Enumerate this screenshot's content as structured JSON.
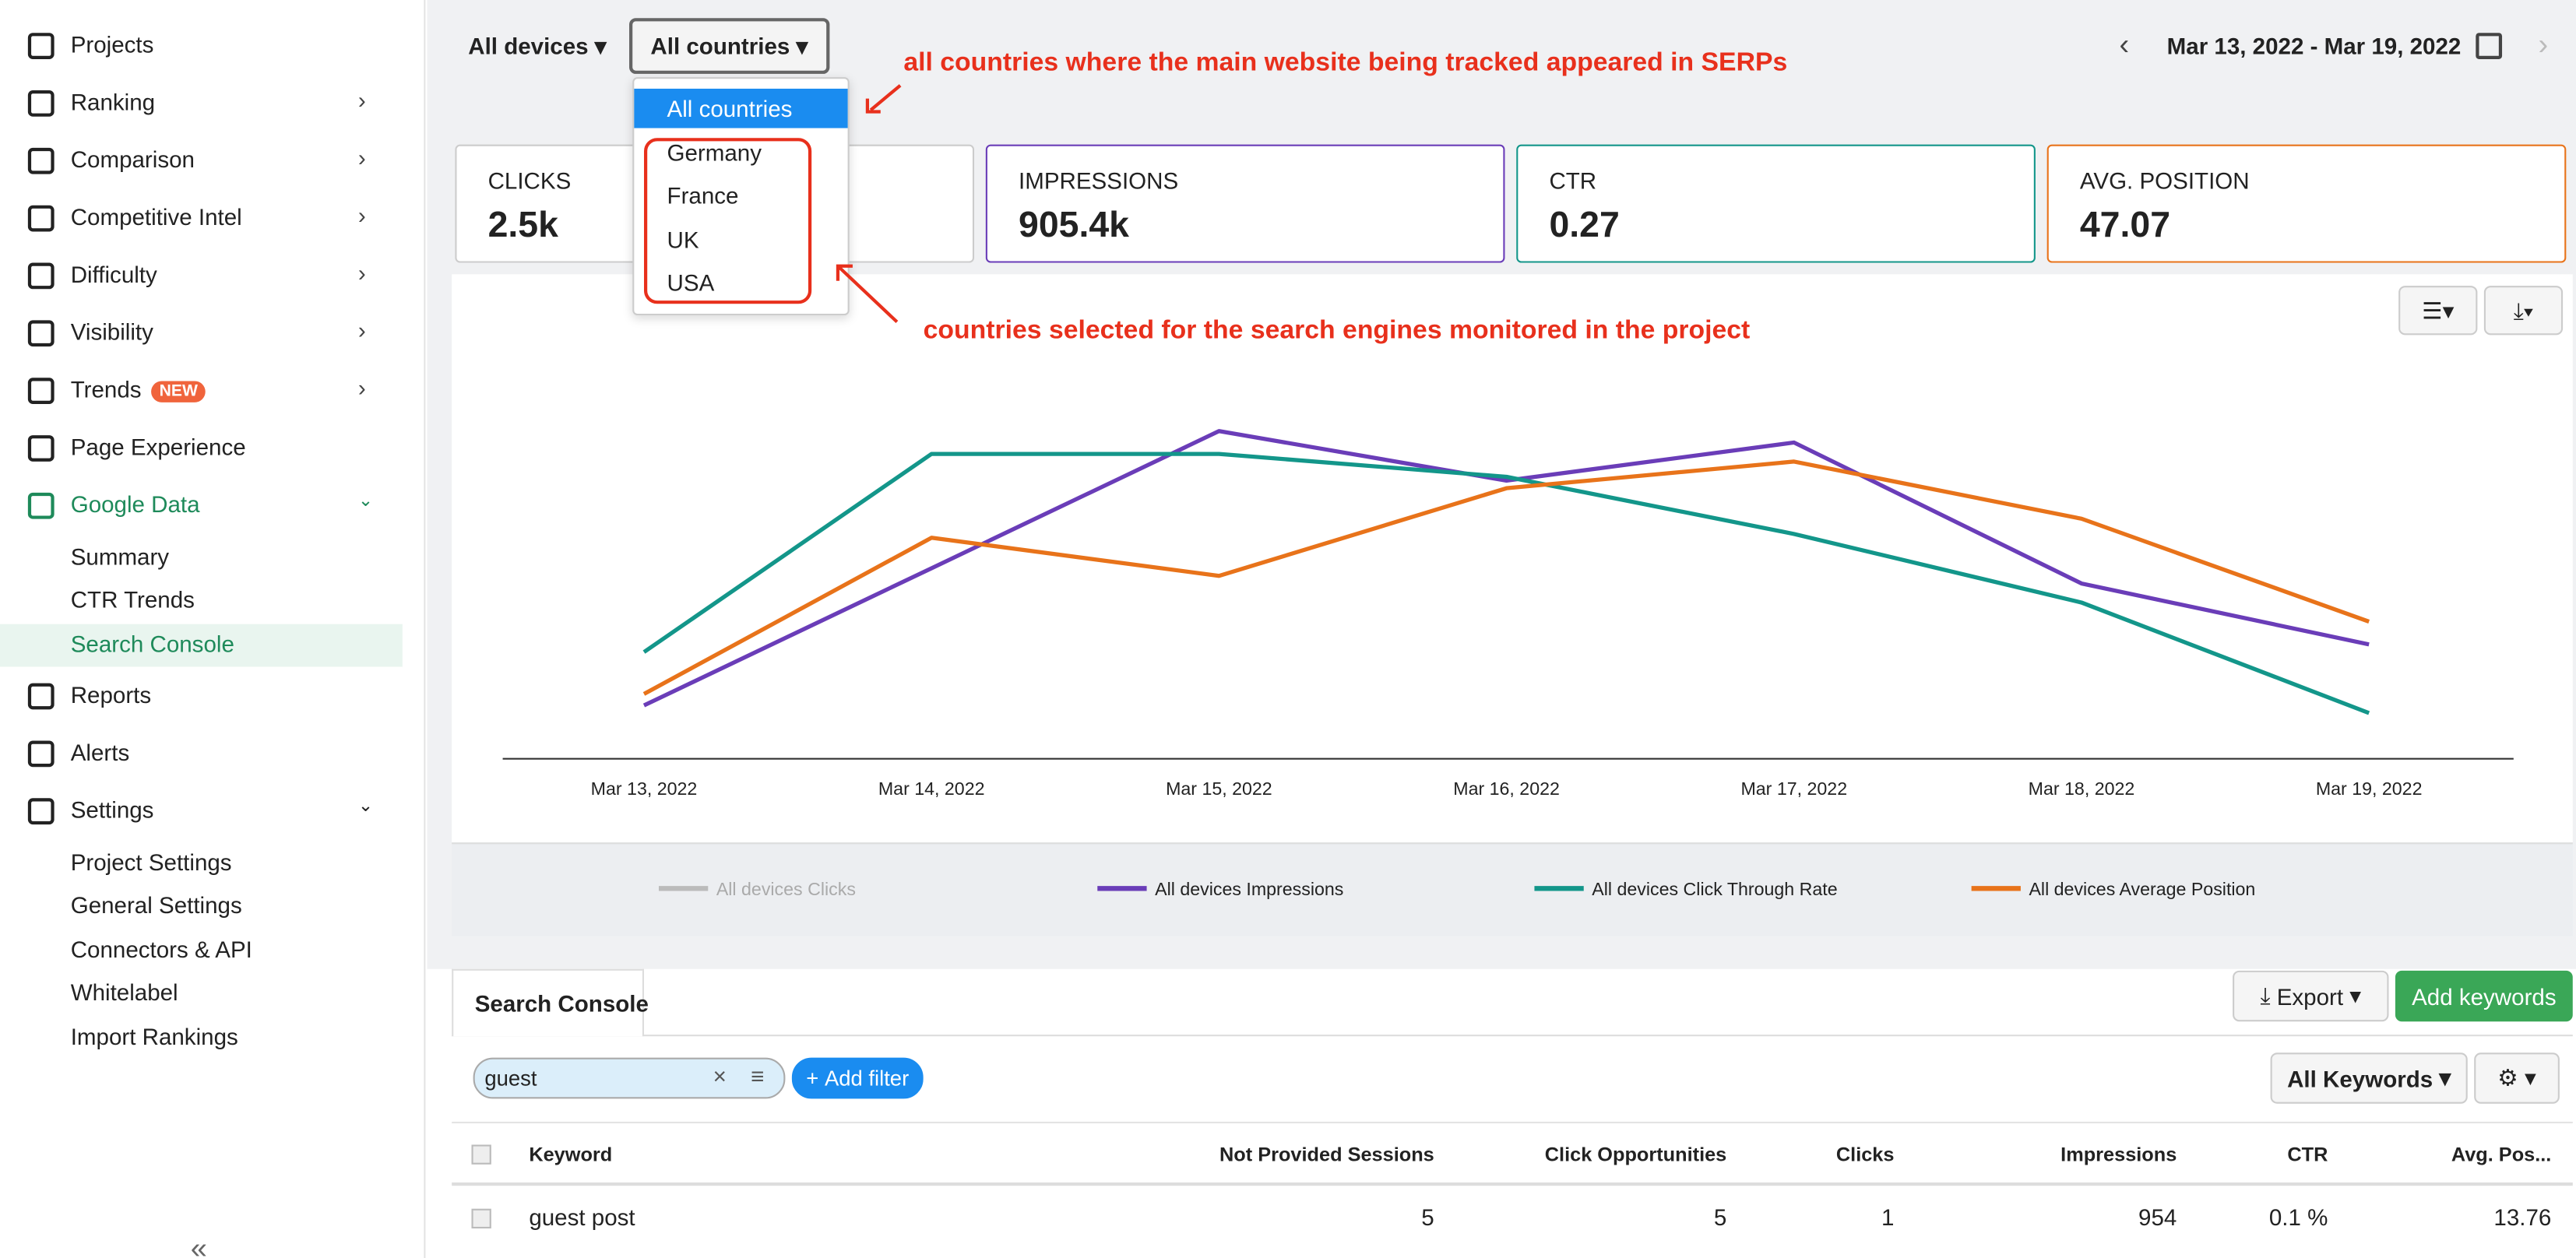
{
  "sidebar": {
    "items": [
      {
        "label": "Projects"
      },
      {
        "label": "Ranking"
      },
      {
        "label": "Comparison"
      },
      {
        "label": "Competitive Intel"
      },
      {
        "label": "Difficulty"
      },
      {
        "label": "Visibility"
      },
      {
        "label": "Trends",
        "badge": "NEW"
      },
      {
        "label": "Page Experience"
      },
      {
        "label": "Google Data"
      },
      {
        "label": "Summary"
      },
      {
        "label": "CTR Trends"
      },
      {
        "label": "Search Console"
      },
      {
        "label": "Reports"
      },
      {
        "label": "Alerts"
      },
      {
        "label": "Settings"
      },
      {
        "label": "Project Settings"
      },
      {
        "label": "General Settings"
      },
      {
        "label": "Connectors & API"
      },
      {
        "label": "Whitelabel"
      },
      {
        "label": "Import Rankings"
      }
    ]
  },
  "toolbar": {
    "devices": "All devices",
    "countries": "All countries",
    "date_range": "Mar 13, 2022 - Mar 19, 2022"
  },
  "country_dropdown": {
    "options": [
      "All countries",
      "Germany",
      "France",
      "UK",
      "USA"
    ]
  },
  "annotations": [
    "all countries where the main website being tracked appeared in SERPs",
    "countries selected for the search engines monitored in the project"
  ],
  "metrics": [
    {
      "label": "CLICKS",
      "value": "2.5k"
    },
    {
      "label": "IMPRESSIONS",
      "value": "905.4k"
    },
    {
      "label": "CTR",
      "value": "0.27"
    },
    {
      "label": "AVG. POSITION",
      "value": "47.07"
    }
  ],
  "chart_data": {
    "type": "line",
    "categories": [
      "Mar 13, 2022",
      "Mar 14, 2022",
      "Mar 15, 2022",
      "Mar 16, 2022",
      "Mar 17, 2022",
      "Mar 18, 2022",
      "Mar 19, 2022"
    ],
    "ylim": [
      0,
      100
    ],
    "series": [
      {
        "name": "All devices Clicks",
        "color": "#bbbbbb",
        "values": [
          null,
          null,
          null,
          null,
          null,
          null,
          null
        ]
      },
      {
        "name": "All devices Impressions",
        "color": "#6a3db8",
        "values": [
          14,
          50,
          86,
          73,
          83,
          46,
          30
        ]
      },
      {
        "name": "All devices Click Through Rate",
        "color": "#13968a",
        "values": [
          28,
          80,
          80,
          74,
          59,
          41,
          12
        ]
      },
      {
        "name": "All devices Average Position",
        "color": "#e8731a",
        "values": [
          17,
          58,
          48,
          71,
          78,
          63,
          36
        ]
      }
    ]
  },
  "table": {
    "tab": "Search Console",
    "export": "Export",
    "add_keywords": "Add keywords",
    "filter": "guest",
    "add_filter": "Add filter",
    "keyword_set": "All Keywords",
    "columns": [
      "Keyword",
      "Not Provided Sessions",
      "Click Opportunities",
      "Clicks",
      "Impressions",
      "CTR",
      "Avg. Pos..."
    ],
    "rows": [
      [
        "guest post",
        5,
        5,
        1,
        954,
        "0.1 %",
        13.76
      ]
    ]
  }
}
